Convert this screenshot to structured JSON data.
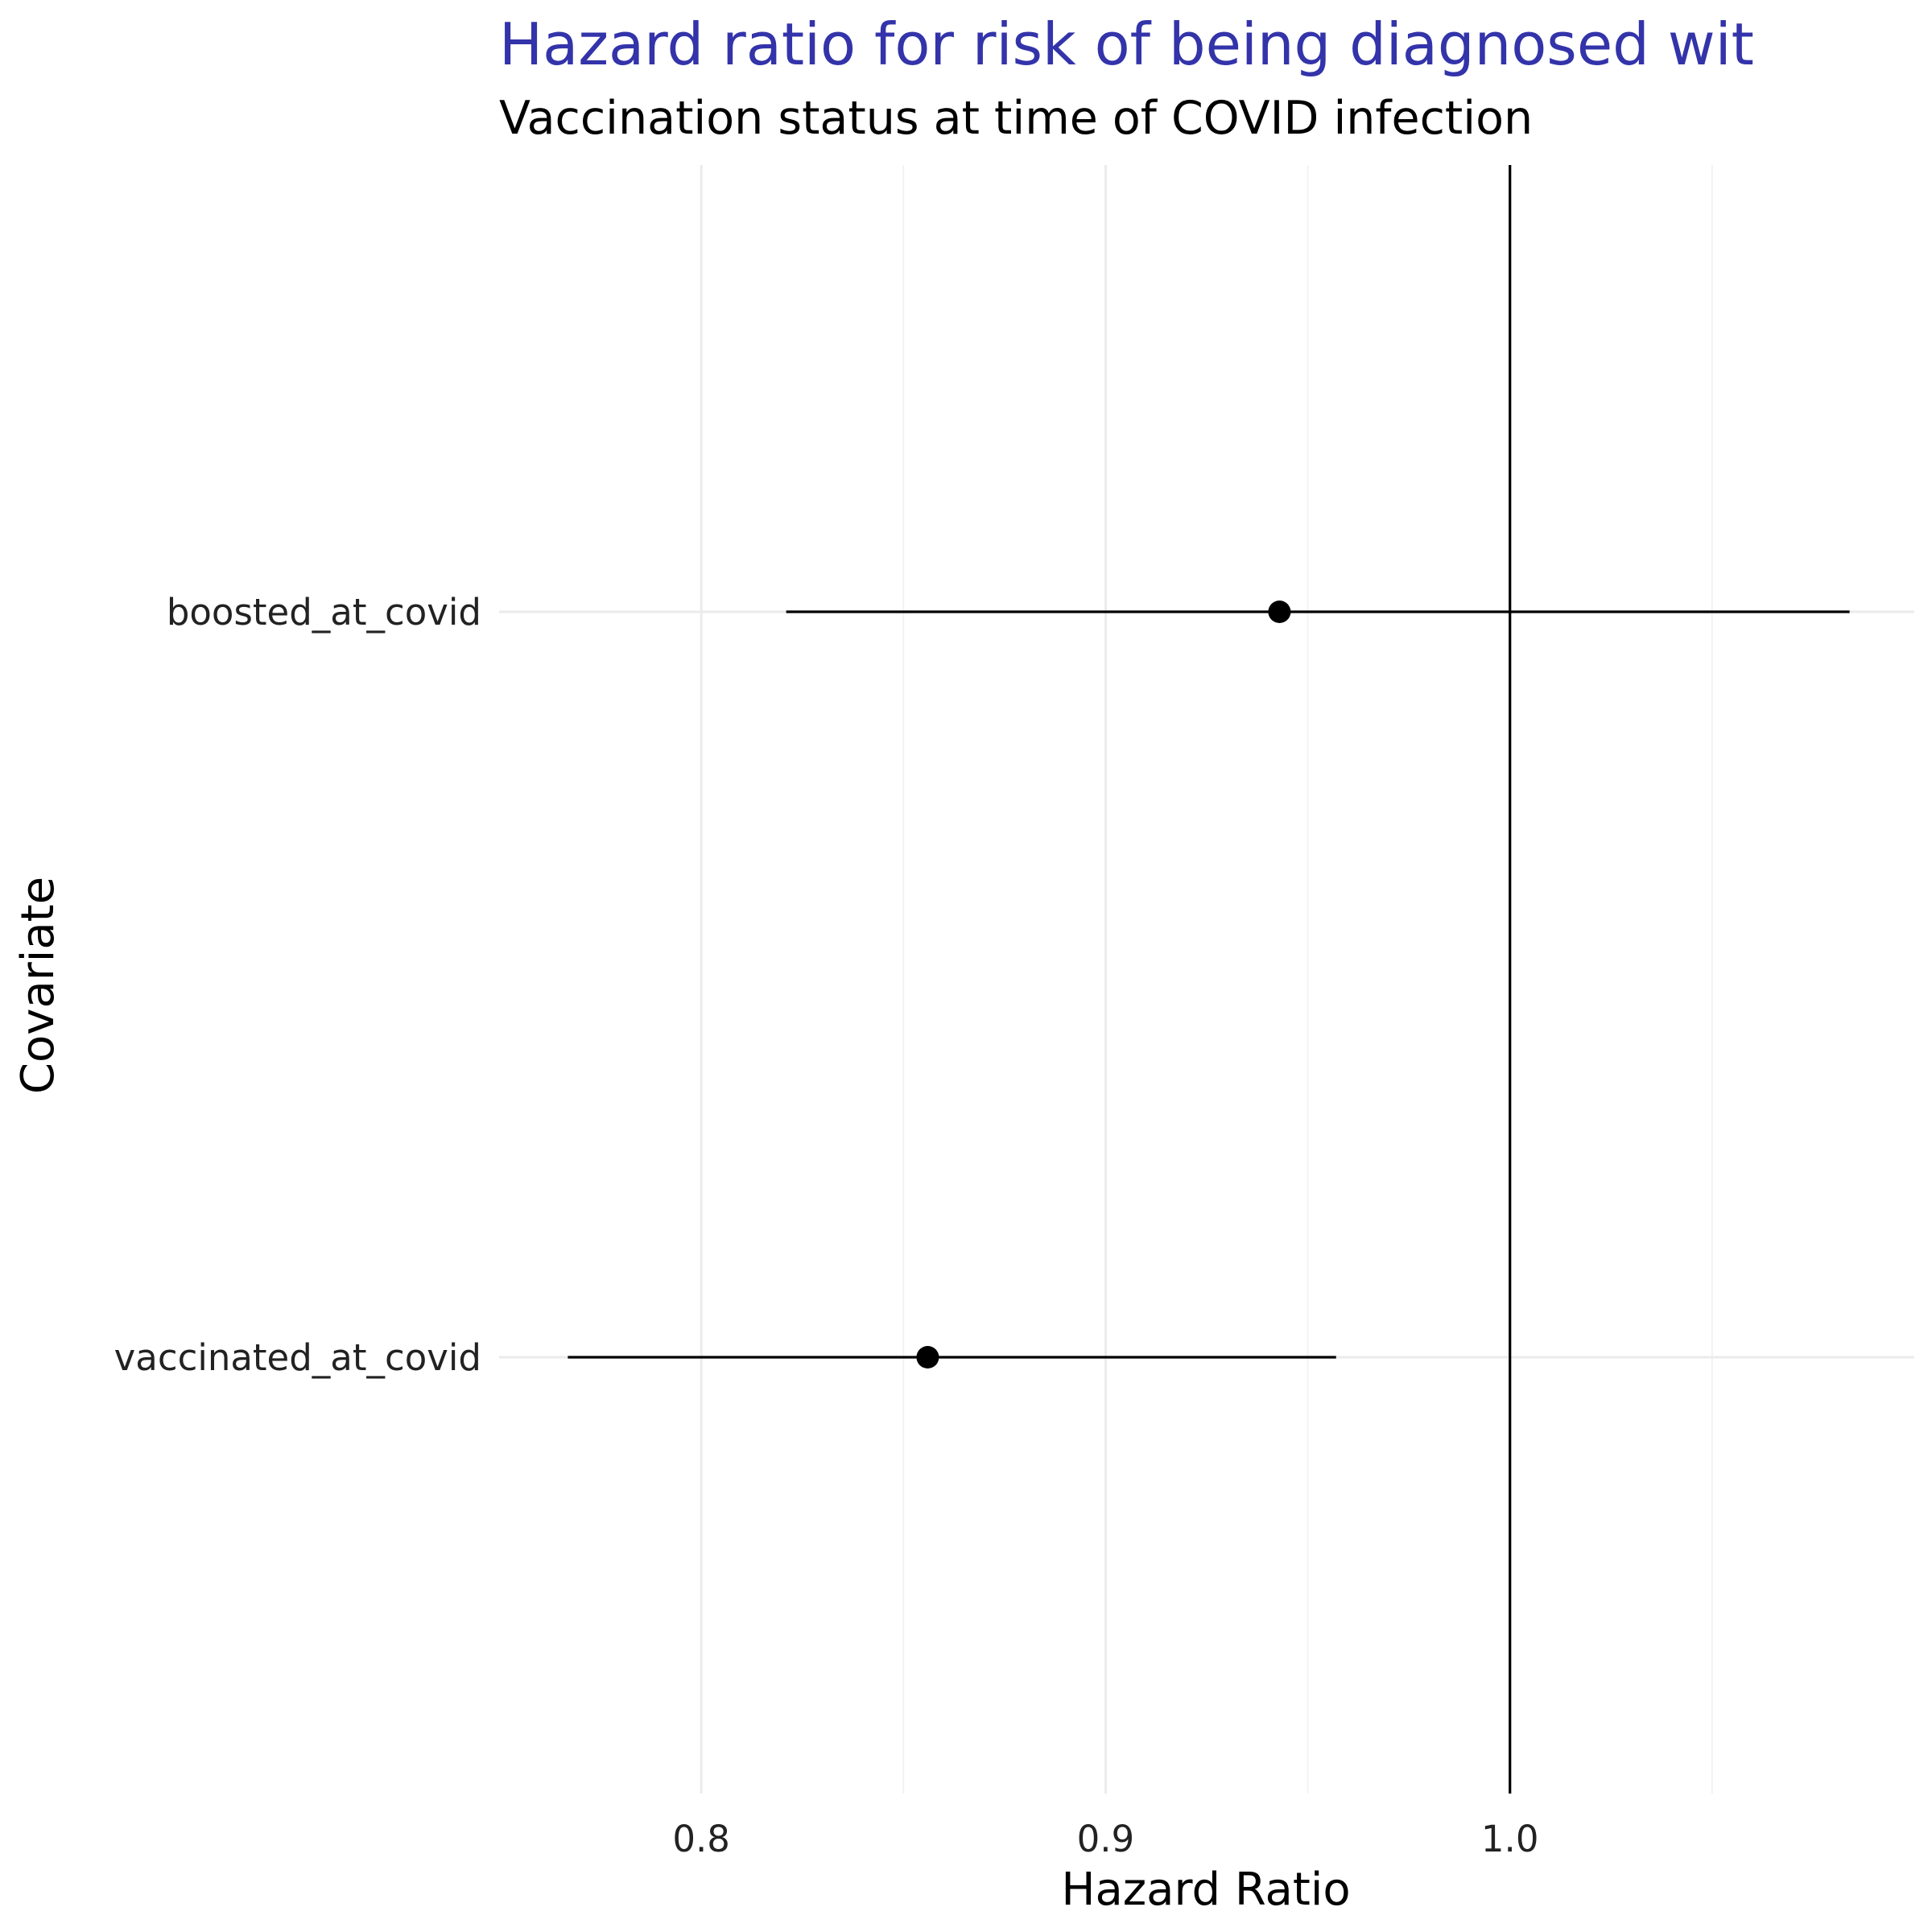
{
  "chart_data": {
    "type": "scatter",
    "title": "Hazard ratio for risk of being diagnosed wit",
    "subtitle": "Vaccination status at time of COVID infection",
    "xlabel": "Hazard Ratio",
    "ylabel": "Covariate",
    "xlim": [
      0.75,
      1.1
    ],
    "x_ticks": [
      "0.8",
      "0.9",
      "1.0"
    ],
    "x_tick_values": [
      0.8,
      0.9,
      1.0
    ],
    "x_minor_ticks": [
      0.85,
      0.95,
      1.05
    ],
    "reference_line": 1.0,
    "categories": [
      "boosted_at_covid",
      "vaccinated_at_covid"
    ],
    "points": [
      {
        "covariate": "boosted_at_covid",
        "estimate": 0.943,
        "ci_low": 0.821,
        "ci_high": 1.084
      },
      {
        "covariate": "vaccinated_at_covid",
        "estimate": 0.856,
        "ci_low": 0.767,
        "ci_high": 0.957
      }
    ],
    "grid": true,
    "colors": {
      "title": "#3333aa",
      "points": "#000000",
      "grid": "#ebebeb"
    }
  }
}
